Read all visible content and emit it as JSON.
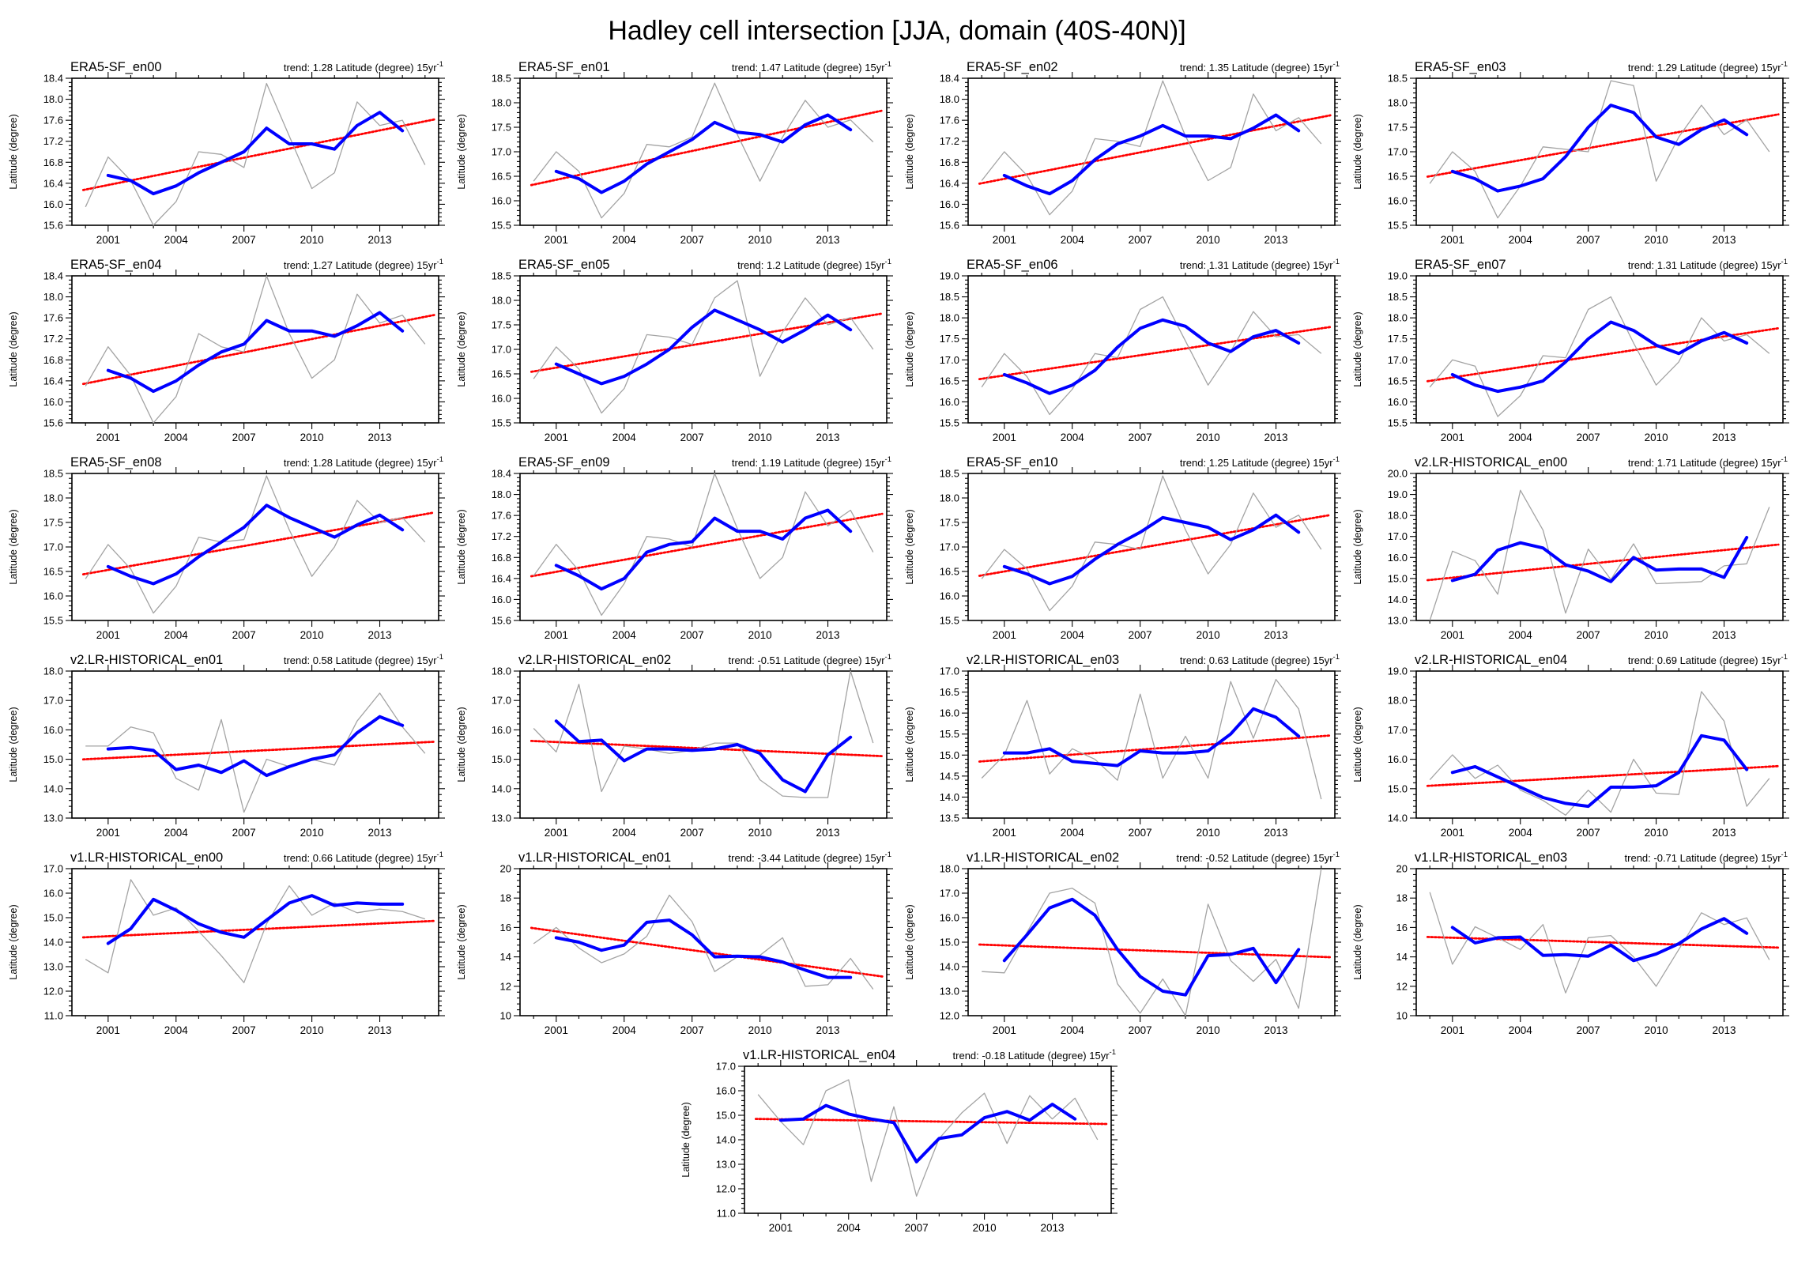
{
  "page_title": "Hadley cell intersection [JJA, domain (40S-40N)]",
  "shared": {
    "ylabel": "Latitude (degree)",
    "trend_prefix": "trend: ",
    "trend_suffix": " Latitude (degree) 15yr",
    "trend_superscript": "-1",
    "xticks": [
      2001,
      2004,
      2007,
      2010,
      2013
    ],
    "x_start": 2000,
    "x_end": 2015,
    "blue_start": 2001,
    "blue_end": 2014,
    "xlim": [
      1999.4,
      2015.6
    ],
    "colors": {
      "raw": "#a3a3a3",
      "smooth": "#0000ff",
      "trend": "#ff0000",
      "axis": "#000000"
    }
  },
  "chart_data": [
    {
      "type": "line",
      "title": "ERA5-SF_en00",
      "trend": "1.28",
      "yticks": [
        "18.4",
        "18.0",
        "17.6",
        "17.2",
        "16.8",
        "16.4",
        "16.0",
        "15.6"
      ],
      "gray": [
        15.95,
        16.9,
        16.45,
        15.6,
        16.05,
        17.0,
        16.95,
        16.7,
        18.3,
        17.3,
        16.3,
        16.6,
        17.95,
        17.5,
        17.6,
        16.75
      ],
      "blue": [
        16.55,
        16.45,
        16.2,
        16.35,
        16.6,
        16.8,
        17.0,
        17.45,
        17.15,
        17.15,
        17.05,
        17.5,
        17.75,
        17.4
      ],
      "trend_line": [
        16.28,
        17.58
      ]
    },
    {
      "type": "line",
      "title": "ERA5-SF_en01",
      "trend": "1.47",
      "yticks": [
        "18.5",
        "18.0",
        "17.5",
        "17.0",
        "16.5",
        "16.0",
        "15.5"
      ],
      "gray": [
        16.4,
        17.0,
        16.6,
        15.65,
        16.15,
        17.15,
        17.1,
        17.3,
        18.4,
        17.35,
        16.4,
        17.3,
        18.05,
        17.5,
        17.65,
        17.2
      ],
      "blue": [
        16.6,
        16.45,
        16.17,
        16.4,
        16.75,
        17.0,
        17.25,
        17.6,
        17.4,
        17.35,
        17.2,
        17.55,
        17.75,
        17.45
      ],
      "trend_line": [
        16.33,
        17.8
      ]
    },
    {
      "type": "line",
      "title": "ERA5-SF_en02",
      "trend": "1.35",
      "yticks": [
        "18.4",
        "18.0",
        "17.6",
        "17.2",
        "16.8",
        "16.4",
        "16.0",
        "15.6"
      ],
      "gray": [
        16.45,
        17.0,
        16.55,
        15.8,
        16.25,
        17.25,
        17.2,
        17.1,
        18.35,
        17.3,
        16.45,
        16.7,
        18.1,
        17.4,
        17.65,
        17.15
      ],
      "blue": [
        16.55,
        16.35,
        16.2,
        16.45,
        16.85,
        17.15,
        17.3,
        17.5,
        17.3,
        17.3,
        17.25,
        17.45,
        17.7,
        17.4
      ],
      "trend_line": [
        16.4,
        17.66
      ]
    },
    {
      "type": "line",
      "title": "ERA5-SF_en03",
      "trend": "1.29",
      "yticks": [
        "18.5",
        "18.0",
        "17.5",
        "17.0",
        "16.5",
        "16.0",
        "15.5"
      ],
      "gray": [
        16.35,
        17.0,
        16.6,
        15.65,
        16.3,
        17.1,
        17.05,
        17.0,
        18.45,
        18.35,
        16.4,
        17.3,
        17.95,
        17.35,
        17.65,
        17.0
      ],
      "blue": [
        16.6,
        16.45,
        16.2,
        16.3,
        16.45,
        16.9,
        17.5,
        17.95,
        17.8,
        17.3,
        17.15,
        17.45,
        17.65,
        17.35
      ],
      "trend_line": [
        16.5,
        17.73
      ]
    },
    {
      "type": "line",
      "title": "ERA5-SF_en04",
      "trend": "1.27",
      "yticks": [
        "18.4",
        "18.0",
        "17.6",
        "17.2",
        "16.8",
        "16.4",
        "16.0",
        "15.6"
      ],
      "gray": [
        16.3,
        17.05,
        16.5,
        15.6,
        16.1,
        17.3,
        17.05,
        16.95,
        18.4,
        17.3,
        16.45,
        16.8,
        18.05,
        17.5,
        17.65,
        17.1
      ],
      "blue": [
        16.6,
        16.45,
        16.2,
        16.4,
        16.7,
        16.95,
        17.1,
        17.55,
        17.35,
        17.35,
        17.25,
        17.45,
        17.7,
        17.35
      ],
      "trend_line": [
        16.35,
        17.62
      ]
    },
    {
      "type": "line",
      "title": "ERA5-SF_en05",
      "trend": "1.2",
      "yticks": [
        "18.5",
        "18.0",
        "17.5",
        "17.0",
        "16.5",
        "16.0",
        "15.5"
      ],
      "gray": [
        16.4,
        17.05,
        16.6,
        15.7,
        16.2,
        17.3,
        17.25,
        17.1,
        18.05,
        18.4,
        16.45,
        17.35,
        18.05,
        17.5,
        17.65,
        17.0
      ],
      "blue": [
        16.7,
        16.5,
        16.3,
        16.45,
        16.7,
        17.0,
        17.45,
        17.8,
        17.6,
        17.4,
        17.15,
        17.4,
        17.7,
        17.4
      ],
      "trend_line": [
        16.55,
        17.7
      ]
    },
    {
      "type": "line",
      "title": "ERA5-SF_en06",
      "trend": "1.31",
      "yticks": [
        "19.0",
        "18.5",
        "18.0",
        "17.5",
        "17.0",
        "16.5",
        "16.0",
        "15.5"
      ],
      "gray": [
        16.35,
        17.15,
        16.6,
        15.7,
        16.3,
        17.15,
        17.05,
        18.2,
        18.5,
        17.45,
        16.4,
        17.2,
        18.15,
        17.55,
        17.6,
        17.15
      ],
      "blue": [
        16.65,
        16.45,
        16.2,
        16.4,
        16.75,
        17.3,
        17.75,
        17.95,
        17.8,
        17.4,
        17.2,
        17.55,
        17.7,
        17.4
      ],
      "trend_line": [
        16.55,
        17.75
      ]
    },
    {
      "type": "line",
      "title": "ERA5-SF_en07",
      "trend": "1.31",
      "yticks": [
        "19.0",
        "18.5",
        "18.0",
        "17.5",
        "17.0",
        "16.5",
        "16.0",
        "15.5"
      ],
      "gray": [
        16.35,
        17.0,
        16.85,
        15.65,
        16.15,
        17.1,
        17.05,
        18.2,
        18.5,
        17.4,
        16.4,
        16.95,
        18.0,
        17.45,
        17.6,
        17.15
      ],
      "blue": [
        16.65,
        16.4,
        16.25,
        16.35,
        16.5,
        16.95,
        17.5,
        17.9,
        17.7,
        17.35,
        17.15,
        17.45,
        17.65,
        17.4
      ],
      "trend_line": [
        16.5,
        17.72
      ]
    },
    {
      "type": "line",
      "title": "ERA5-SF_en08",
      "trend": "1.28",
      "yticks": [
        "18.5",
        "18.0",
        "17.5",
        "17.0",
        "16.5",
        "16.0",
        "15.5"
      ],
      "gray": [
        16.35,
        17.05,
        16.55,
        15.65,
        16.2,
        17.2,
        17.1,
        17.15,
        18.45,
        17.35,
        16.4,
        17.0,
        17.95,
        17.5,
        17.6,
        17.1
      ],
      "blue": [
        16.6,
        16.4,
        16.25,
        16.45,
        16.8,
        17.1,
        17.4,
        17.85,
        17.6,
        17.4,
        17.2,
        17.45,
        17.65,
        17.35
      ],
      "trend_line": [
        16.45,
        17.67
      ]
    },
    {
      "type": "line",
      "title": "ERA5-SF_en09",
      "trend": "1.19",
      "yticks": [
        "18.4",
        "18.0",
        "17.6",
        "17.2",
        "16.8",
        "16.4",
        "16.0",
        "15.6"
      ],
      "gray": [
        16.45,
        17.05,
        16.55,
        15.7,
        16.3,
        17.2,
        17.15,
        17.0,
        18.4,
        17.35,
        16.4,
        16.8,
        18.05,
        17.4,
        17.7,
        16.9
      ],
      "blue": [
        16.65,
        16.45,
        16.2,
        16.4,
        16.9,
        17.05,
        17.1,
        17.55,
        17.3,
        17.3,
        17.15,
        17.55,
        17.7,
        17.3
      ],
      "trend_line": [
        16.45,
        17.6
      ]
    },
    {
      "type": "line",
      "title": "ERA5-SF_en10",
      "trend": "1.25",
      "yticks": [
        "18.5",
        "18.0",
        "17.5",
        "17.0",
        "16.5",
        "16.0",
        "15.5"
      ],
      "gray": [
        16.35,
        16.95,
        16.55,
        15.7,
        16.2,
        17.1,
        17.05,
        16.95,
        18.45,
        17.35,
        16.45,
        17.05,
        18.1,
        17.4,
        17.65,
        16.95
      ],
      "blue": [
        16.6,
        16.45,
        16.25,
        16.4,
        16.75,
        17.05,
        17.3,
        17.6,
        17.5,
        17.4,
        17.15,
        17.35,
        17.65,
        17.3
      ],
      "trend_line": [
        16.42,
        17.62
      ]
    },
    {
      "type": "line",
      "title": "v2.LR-HISTORICAL_en00",
      "trend": "1.71",
      "yticks": [
        "20.0",
        "19.0",
        "18.0",
        "17.0",
        "16.0",
        "15.0",
        "14.0",
        "13.0"
      ],
      "gray": [
        13.0,
        16.3,
        15.85,
        14.25,
        19.2,
        17.3,
        13.35,
        16.4,
        14.95,
        16.65,
        14.75,
        14.8,
        14.85,
        15.6,
        15.7,
        18.4
      ],
      "blue": [
        14.9,
        15.2,
        16.35,
        16.7,
        16.45,
        15.65,
        15.35,
        14.85,
        16.0,
        15.4,
        15.45,
        15.45,
        15.05,
        16.95
      ],
      "trend_line": [
        14.93,
        16.57
      ]
    },
    {
      "type": "line",
      "title": "v2.LR-HISTORICAL_en01",
      "trend": "0.58",
      "yticks": [
        "18.0",
        "17.0",
        "16.0",
        "15.0",
        "14.0",
        "13.0"
      ],
      "gray": [
        15.45,
        15.45,
        16.1,
        15.9,
        14.35,
        13.95,
        16.35,
        13.2,
        15.0,
        14.75,
        15.0,
        14.8,
        16.3,
        17.25,
        16.1,
        15.2
      ],
      "blue": [
        15.35,
        15.4,
        15.3,
        14.65,
        14.8,
        14.55,
        14.95,
        14.45,
        14.75,
        15.0,
        15.15,
        15.9,
        16.45,
        16.15
      ],
      "trend_line": [
        15.0,
        15.58
      ]
    },
    {
      "type": "line",
      "title": "v2.LR-HISTORICAL_en02",
      "trend": "-0.51",
      "yticks": [
        "18.0",
        "17.0",
        "16.0",
        "15.0",
        "14.0",
        "13.0"
      ],
      "gray": [
        16.05,
        15.25,
        17.55,
        13.9,
        15.45,
        15.35,
        15.2,
        15.3,
        15.55,
        15.55,
        14.3,
        13.75,
        13.7,
        13.7,
        18.0,
        15.55
      ],
      "blue": [
        16.3,
        15.6,
        15.65,
        14.95,
        15.35,
        15.35,
        15.3,
        15.35,
        15.5,
        15.2,
        14.3,
        13.9,
        15.15,
        15.75
      ],
      "trend_line": [
        15.62,
        15.12
      ]
    },
    {
      "type": "line",
      "title": "v2.LR-HISTORICAL_en03",
      "trend": "0.63",
      "yticks": [
        "17.0",
        "16.5",
        "16.0",
        "15.5",
        "15.0",
        "14.5",
        "14.0",
        "13.5"
      ],
      "gray": [
        14.45,
        15.0,
        16.3,
        14.55,
        15.15,
        14.9,
        14.4,
        16.45,
        14.45,
        15.45,
        14.45,
        16.75,
        15.4,
        16.8,
        16.1,
        13.95
      ],
      "blue": [
        15.05,
        15.05,
        15.15,
        14.85,
        14.8,
        14.75,
        15.1,
        15.05,
        15.05,
        15.1,
        15.5,
        16.1,
        15.9,
        15.45
      ],
      "trend_line": [
        14.85,
        15.45
      ]
    },
    {
      "type": "line",
      "title": "v2.LR-HISTORICAL_en04",
      "trend": "0.69",
      "yticks": [
        "19.0",
        "18.0",
        "17.0",
        "16.0",
        "15.0",
        "14.0"
      ],
      "gray": [
        15.3,
        16.15,
        15.35,
        15.8,
        14.95,
        14.6,
        14.1,
        14.95,
        14.2,
        16.0,
        14.85,
        14.8,
        18.3,
        17.3,
        14.4,
        15.35
      ],
      "blue": [
        15.55,
        15.75,
        15.4,
        15.05,
        14.7,
        14.5,
        14.4,
        15.05,
        15.05,
        15.1,
        15.55,
        16.8,
        16.65,
        15.65
      ],
      "trend_line": [
        15.1,
        15.75
      ]
    },
    {
      "type": "line",
      "title": "v1.LR-HISTORICAL_en00",
      "trend": "0.66",
      "yticks": [
        "17.0",
        "16.0",
        "15.0",
        "14.0",
        "13.0",
        "12.0",
        "11.0"
      ],
      "gray": [
        13.3,
        12.75,
        16.55,
        15.1,
        15.4,
        14.45,
        13.45,
        12.35,
        14.75,
        16.3,
        15.1,
        15.6,
        15.2,
        15.35,
        15.25,
        14.95
      ],
      "blue": [
        13.95,
        14.55,
        15.75,
        15.3,
        14.75,
        14.4,
        14.2,
        14.9,
        15.6,
        15.9,
        15.5,
        15.6,
        15.55,
        15.55
      ],
      "trend_line": [
        14.2,
        14.85
      ]
    },
    {
      "type": "line",
      "title": "v1.LR-HISTORICAL_en01",
      "trend": "-3.44",
      "yticks": [
        "20",
        "18",
        "16",
        "14",
        "12",
        "10"
      ],
      "gray": [
        14.9,
        16.0,
        14.6,
        13.6,
        14.2,
        15.4,
        18.2,
        16.4,
        13.0,
        14.0,
        14.1,
        15.3,
        12.0,
        12.1,
        13.9,
        11.8
      ],
      "blue": [
        15.3,
        15.0,
        14.45,
        14.8,
        16.35,
        16.5,
        15.5,
        14.0,
        14.05,
        14.0,
        13.65,
        13.1,
        12.6,
        12.6
      ],
      "trend_line": [
        15.95,
        12.75
      ]
    },
    {
      "type": "line",
      "title": "v1.LR-HISTORICAL_en02",
      "trend": "-0.52",
      "yticks": [
        "18.0",
        "17.0",
        "16.0",
        "15.0",
        "14.0",
        "13.0",
        "12.0"
      ],
      "gray": [
        13.8,
        13.75,
        15.4,
        17.0,
        17.2,
        16.6,
        13.3,
        12.1,
        13.5,
        12.0,
        16.55,
        14.25,
        13.4,
        14.3,
        12.3,
        18.0
      ],
      "blue": [
        14.25,
        15.3,
        16.4,
        16.75,
        16.1,
        14.7,
        13.6,
        13.0,
        12.85,
        14.45,
        14.5,
        14.75,
        13.35,
        14.7
      ],
      "trend_line": [
        14.9,
        14.4
      ]
    },
    {
      "type": "line",
      "title": "v1.LR-HISTORICAL_en03",
      "trend": "-0.71",
      "yticks": [
        "20",
        "18",
        "16",
        "14",
        "12",
        "10"
      ],
      "gray": [
        18.4,
        13.5,
        16.05,
        15.3,
        14.5,
        16.2,
        11.55,
        15.3,
        15.45,
        14.0,
        12.0,
        14.5,
        17.0,
        16.2,
        16.65,
        13.8
      ],
      "blue": [
        16.0,
        14.95,
        15.3,
        15.35,
        14.1,
        14.15,
        14.05,
        14.8,
        13.75,
        14.2,
        14.9,
        15.9,
        16.6,
        15.6
      ],
      "trend_line": [
        15.35,
        14.65
      ]
    },
    {
      "type": "line",
      "title": "v1.LR-HISTORICAL_en04",
      "trend": "-0.18",
      "yticks": [
        "17.0",
        "16.0",
        "15.0",
        "14.0",
        "13.0",
        "12.0",
        "11.0"
      ],
      "gray": [
        15.85,
        14.75,
        13.8,
        16.0,
        16.45,
        12.3,
        15.35,
        11.7,
        14.05,
        15.1,
        15.9,
        13.85,
        15.8,
        14.85,
        15.7,
        14.0
      ],
      "blue": [
        14.8,
        14.85,
        15.4,
        15.05,
        14.85,
        14.7,
        13.1,
        14.05,
        14.2,
        14.9,
        15.15,
        14.8,
        15.45,
        14.85
      ],
      "trend_line": [
        14.85,
        14.65
      ]
    }
  ]
}
